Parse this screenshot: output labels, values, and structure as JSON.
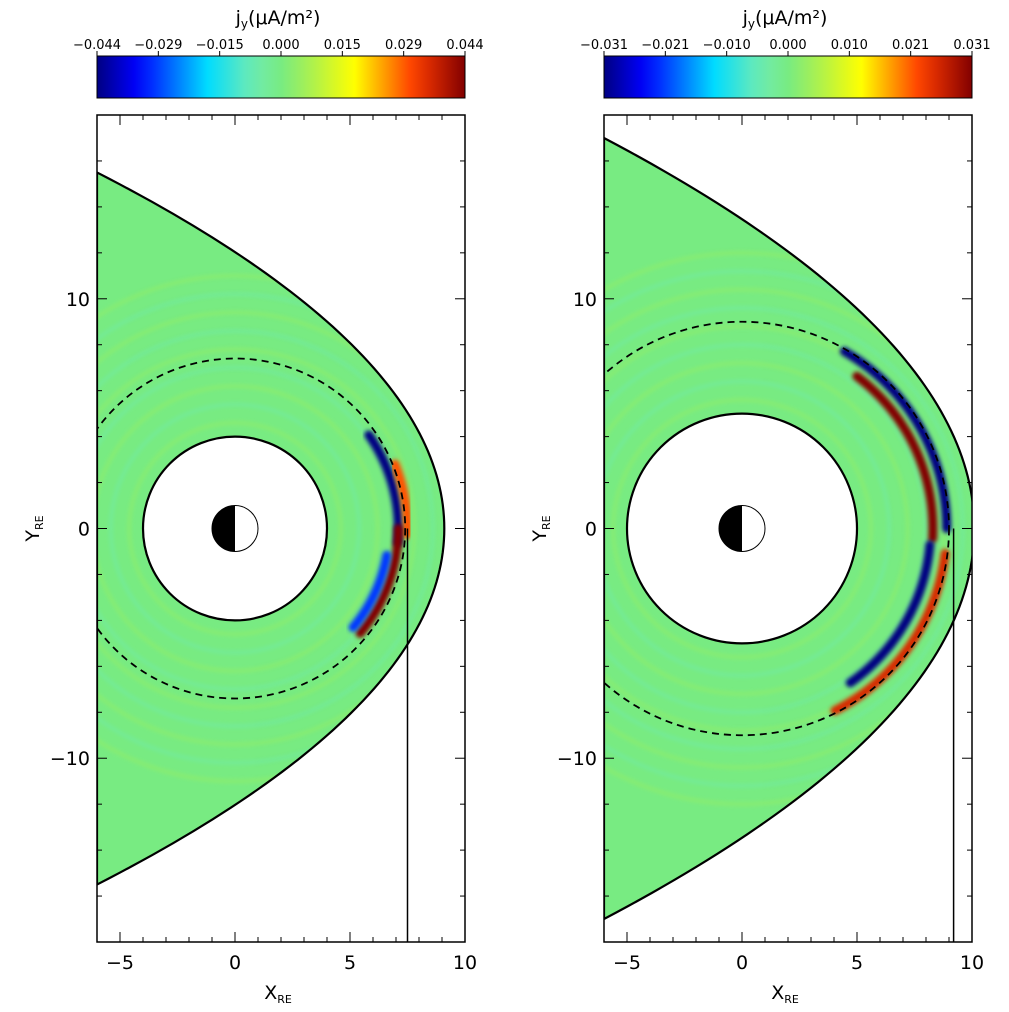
{
  "chart_data": [
    {
      "type": "heatmap",
      "panel": "left",
      "colorbar": {
        "label_main": "j",
        "label_sub": "y",
        "label_unit": "(μA/m²)",
        "ticks": [
          "−0.044",
          "−0.029",
          "−0.015",
          "0.000",
          "0.015",
          "0.029",
          "0.044"
        ],
        "range": [
          -0.044,
          0.044
        ],
        "colormap": "jet"
      },
      "xlabel_main": "X",
      "xlabel_sub": "RE",
      "ylabel_main": "Y",
      "ylabel_sub": "RE",
      "xlim": [
        -6,
        10
      ],
      "ylim": [
        -18,
        18
      ],
      "xticks": [
        {
          "value": -5,
          "label": "−5"
        },
        {
          "value": 0,
          "label": "0"
        },
        {
          "value": 5,
          "label": "5"
        },
        {
          "value": 10,
          "label": "10"
        }
      ],
      "yticks": [
        {
          "value": 10,
          "label": "10"
        },
        {
          "value": 0,
          "label": "0"
        },
        {
          "value": -10,
          "label": "−10"
        }
      ],
      "inner_boundary_radius": 4,
      "dashed_circle_radius": 7.4,
      "outer_boundary": {
        "nose_x": 9.1,
        "flank_x_at_edge": -6,
        "flank_y_at_edge": 15.5
      },
      "vertical_line_x": 7.5,
      "earth_radius": 1,
      "features": [
        {
          "kind": "negative_arc",
          "center_angle_deg": 15,
          "half_width_deg": 20,
          "radius": 7.1,
          "amplitude": -0.044
        },
        {
          "kind": "positive_arc",
          "center_angle_deg": 10,
          "half_width_deg": 12,
          "radius": 7.5,
          "amplitude": 0.03
        },
        {
          "kind": "positive_arc",
          "center_angle_deg": -20,
          "half_width_deg": 20,
          "radius": 7.1,
          "amplitude": 0.044
        },
        {
          "kind": "negative_arc",
          "center_angle_deg": -25,
          "half_width_deg": 15,
          "radius": 6.7,
          "amplitude": -0.03
        }
      ]
    },
    {
      "type": "heatmap",
      "panel": "right",
      "colorbar": {
        "label_main": "j",
        "label_sub": "y",
        "label_unit": "(μA/m²)",
        "ticks": [
          "−0.031",
          "−0.021",
          "−0.010",
          "0.000",
          "0.010",
          "0.021",
          "0.031"
        ],
        "range": [
          -0.031,
          0.031
        ],
        "colormap": "jet"
      },
      "xlabel_main": "X",
      "xlabel_sub": "RE",
      "ylabel_main": "Y",
      "ylabel_sub": "RE",
      "xlim": [
        -6,
        10
      ],
      "ylim": [
        -18,
        18
      ],
      "xticks": [
        {
          "value": -5,
          "label": "−5"
        },
        {
          "value": 0,
          "label": "0"
        },
        {
          "value": 5,
          "label": "5"
        },
        {
          "value": 10,
          "label": "10"
        }
      ],
      "yticks": [
        {
          "value": 10,
          "label": "10"
        },
        {
          "value": 0,
          "label": "0"
        },
        {
          "value": -10,
          "label": "−10"
        }
      ],
      "inner_boundary_radius": 5,
      "dashed_circle_radius": 9,
      "outer_boundary": {
        "nose_x": 10.1,
        "flank_x_at_edge": -6,
        "flank_y_at_edge": 17
      },
      "vertical_line_x": 9.2,
      "earth_radius": 1,
      "features": [
        {
          "kind": "negative_arc",
          "center_angle_deg": 30,
          "half_width_deg": 30,
          "radius": 8.9,
          "amplitude": -0.031
        },
        {
          "kind": "positive_arc",
          "center_angle_deg": 25,
          "half_width_deg": 28,
          "radius": 8.3,
          "amplitude": 0.031
        },
        {
          "kind": "negative_arc",
          "center_angle_deg": -30,
          "half_width_deg": 25,
          "radius": 8.2,
          "amplitude": -0.031
        },
        {
          "kind": "positive_arc",
          "center_angle_deg": -35,
          "half_width_deg": 28,
          "radius": 8.9,
          "amplitude": 0.025
        }
      ]
    }
  ]
}
